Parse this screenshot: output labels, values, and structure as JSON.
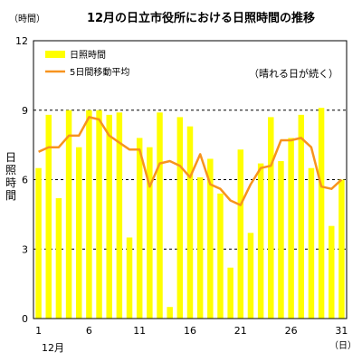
{
  "chart_data": {
    "type": "bar",
    "title": "12月の日立市役所における日照時間の推移",
    "unit_label": "（時間）",
    "ylabel": "日照時間",
    "xunit": "（日）",
    "xmonth": "12月",
    "annotation": "（晴れる日が続く）",
    "ylim": [
      0,
      12
    ],
    "yticks": [
      0,
      3,
      6,
      9,
      12
    ],
    "xticks": [
      1,
      6,
      11,
      16,
      21,
      26,
      31
    ],
    "grid": "dashed-horizontal",
    "legend_position": "top-left",
    "x": [
      1,
      2,
      3,
      4,
      5,
      6,
      7,
      8,
      9,
      10,
      11,
      12,
      13,
      14,
      15,
      16,
      17,
      18,
      19,
      20,
      21,
      22,
      23,
      24,
      25,
      26,
      27,
      28,
      29,
      30,
      31
    ],
    "series": [
      {
        "name": "日照時間",
        "type": "bar",
        "color": "#ffff00",
        "values": [
          6.5,
          8.8,
          5.2,
          9.0,
          7.4,
          9.0,
          9.0,
          8.8,
          8.9,
          3.5,
          7.8,
          7.4,
          8.9,
          0.5,
          8.7,
          8.3,
          6.1,
          6.9,
          5.4,
          2.2,
          7.3,
          3.7,
          6.7,
          8.7,
          6.8,
          7.8,
          8.8,
          6.5,
          9.1,
          4.0,
          6.0
        ]
      },
      {
        "name": "5日間移動平均",
        "type": "line",
        "color": "#f7931e",
        "values": [
          7.2,
          7.4,
          7.4,
          7.9,
          7.9,
          8.7,
          8.6,
          7.9,
          7.6,
          7.3,
          7.3,
          5.7,
          6.7,
          6.8,
          6.6,
          6.1,
          7.1,
          5.8,
          5.6,
          5.1,
          4.9,
          5.8,
          6.5,
          6.6,
          7.7,
          7.7,
          7.8,
          7.4,
          5.7,
          5.6,
          6.0
        ]
      }
    ]
  }
}
